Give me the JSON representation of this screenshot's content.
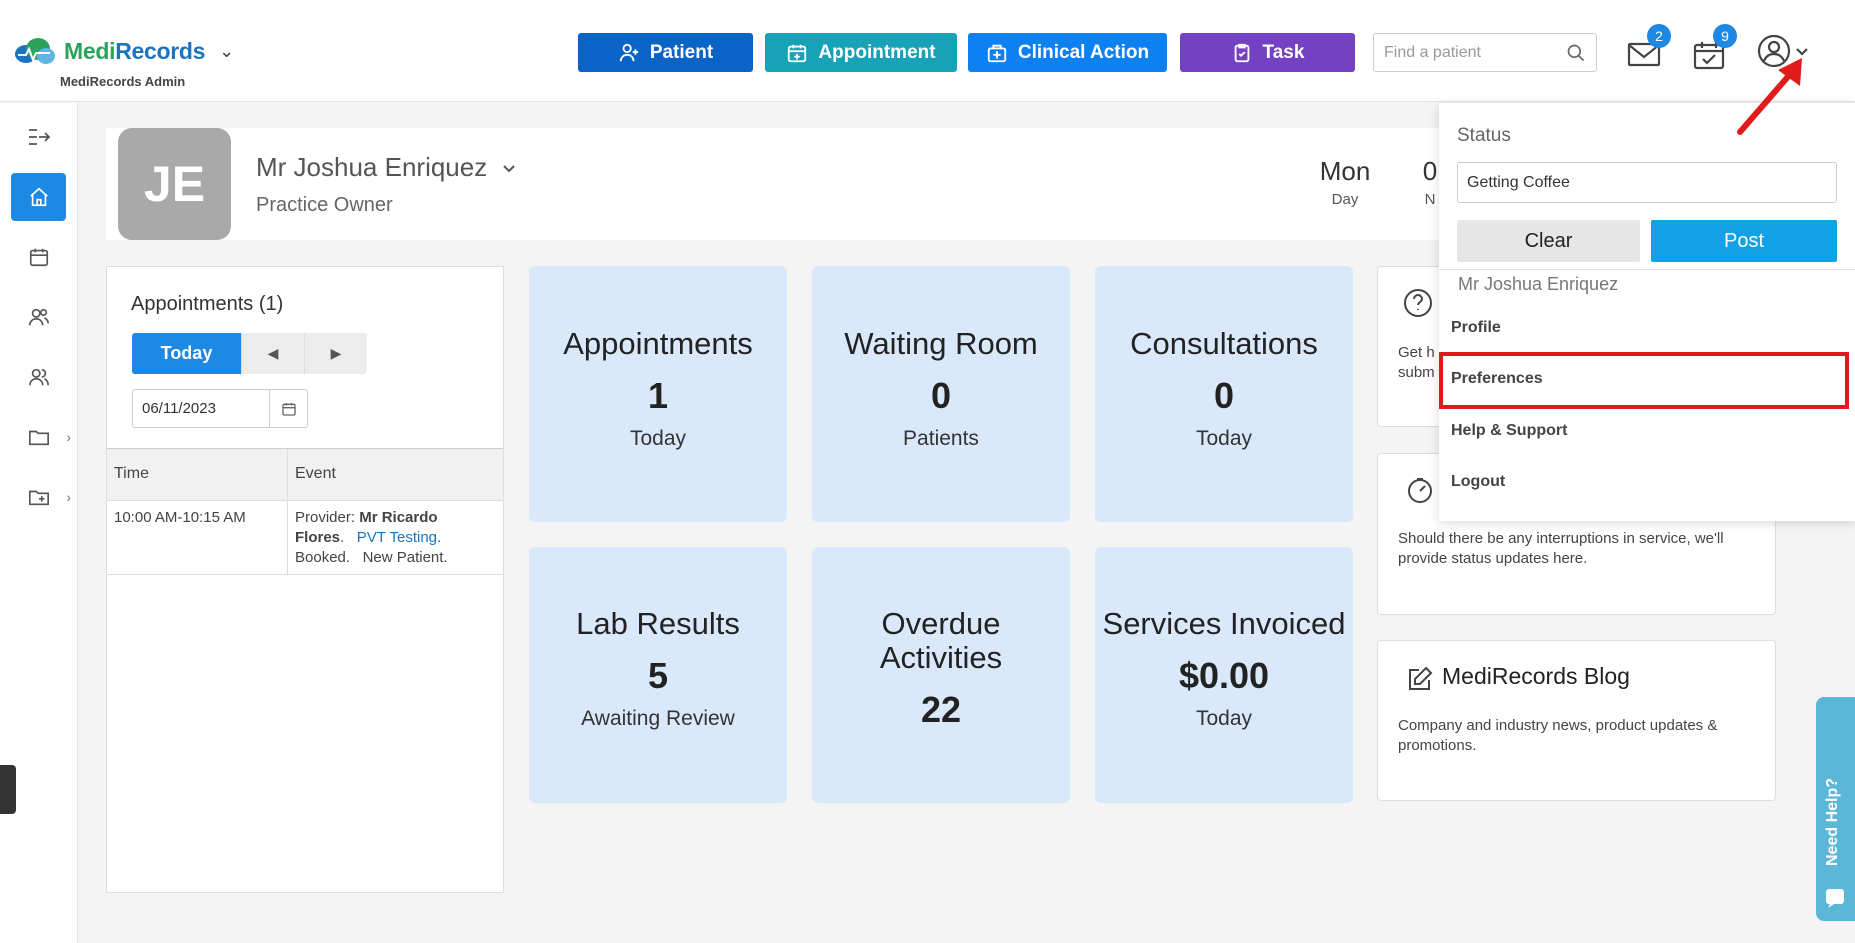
{
  "brand": {
    "name_green": "Medi",
    "name_blue": "Records",
    "subtitle": "MediRecords Admin"
  },
  "top_buttons": [
    {
      "label": "Patient",
      "color": "#0a64c8"
    },
    {
      "label": "Appointment",
      "color": "#17a2b8"
    },
    {
      "label": "Clinical Action",
      "color": "#0d80f2"
    },
    {
      "label": "Task",
      "color": "#7441c4"
    }
  ],
  "search": {
    "placeholder": "Find a patient"
  },
  "badges": {
    "messages": "2",
    "tasks": "9"
  },
  "profile": {
    "initials": "JE",
    "name": "Mr Joshua Enriquez",
    "role": "Practice Owner"
  },
  "date_block": {
    "day_value": "Mon",
    "day_label": "Day",
    "partial_value": "0",
    "partial_label": "N"
  },
  "appointments_panel": {
    "title": "Appointments (1)",
    "today_label": "Today",
    "date": "06/11/2023",
    "headers": {
      "time": "Time",
      "event": "Event"
    },
    "rows": [
      {
        "time": "10:00 AM-10:15 AM",
        "provider_prefix": "Provider: ",
        "provider": "Mr Ricardo Flores",
        "location": "PVT Testing",
        "status": "Booked.",
        "type": "New Patient."
      }
    ]
  },
  "tiles": [
    {
      "title": "Appointments",
      "value": "1",
      "sub": "Today"
    },
    {
      "title": "Waiting Room",
      "value": "0",
      "sub": "Patients"
    },
    {
      "title": "Consultations",
      "value": "0",
      "sub": "Today"
    },
    {
      "title": "Lab Results",
      "value": "5",
      "sub": "Awaiting Review"
    },
    {
      "title": "Overdue Activities",
      "value": "22",
      "sub": ""
    },
    {
      "title": "Services Invoiced",
      "value": "$0.00",
      "sub": "Today"
    }
  ],
  "info_cards": {
    "help_text_partial": "Get h\nsubm",
    "status_text": "Should there be any interruptions in service, we'll provide status updates here.",
    "blog_title": "MediRecords Blog",
    "blog_text": "Company and industry news, product updates & promotions."
  },
  "dropdown": {
    "status_label": "Status",
    "status_value": "Getting Coffee",
    "clear_label": "Clear",
    "post_label": "Post",
    "user_name": "Mr Joshua Enriquez",
    "items": [
      "Profile",
      "Preferences",
      "Help & Support",
      "Logout"
    ]
  },
  "help_tab": {
    "label": "Need Help?"
  }
}
